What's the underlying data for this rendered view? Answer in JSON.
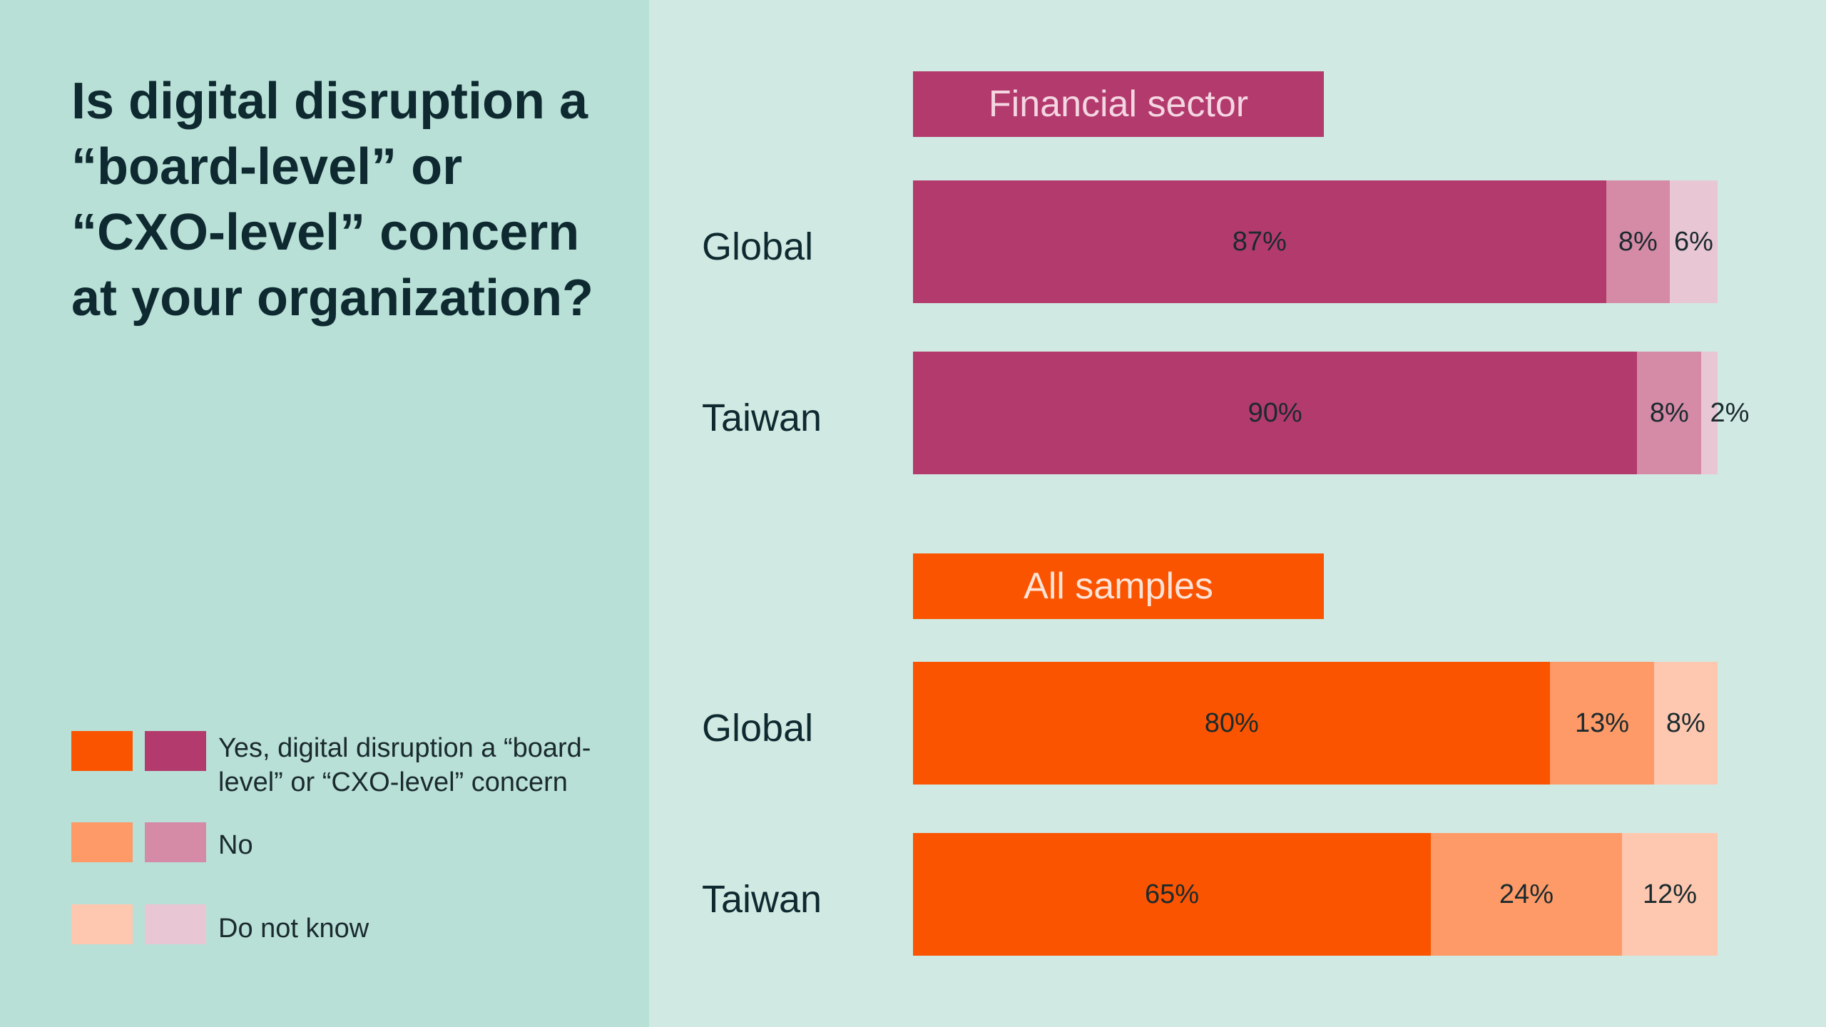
{
  "title": "Is digital disruption a “board-level” or “CXO-level” concern at your organization?",
  "legend": [
    {
      "label": "Yes, digital disruption a “board-level” or “CXO-level” concern",
      "colors": [
        "#fa5400",
        "#b33a6c"
      ]
    },
    {
      "label": "No",
      "colors": [
        "#fd9a68",
        "#d58aa6"
      ]
    },
    {
      "label": "Do not know",
      "colors": [
        "#fec8b0",
        "#e9c6d4"
      ]
    }
  ],
  "chart_data": {
    "type": "bar",
    "orientation": "horizontal",
    "stacked": true,
    "categories": [
      "Yes, digital disruption a “board-level” or “CXO-level” concern",
      "No",
      "Do not know"
    ],
    "groups": [
      {
        "name": "Financial sector",
        "colors": [
          "#b33a6c",
          "#d58aa6",
          "#e9c6d4"
        ],
        "rows": [
          {
            "label": "Global",
            "values": [
              87,
              8,
              6
            ],
            "labels": [
              "87%",
              "8%",
              "6%"
            ]
          },
          {
            "label": "Taiwan",
            "values": [
              90,
              8,
              2
            ],
            "labels": [
              "90%",
              "8%",
              "2%"
            ]
          }
        ]
      },
      {
        "name": "All samples",
        "colors": [
          "#fa5400",
          "#fd9a68",
          "#fec8b0"
        ],
        "rows": [
          {
            "label": "Global",
            "values": [
              80,
              13,
              8
            ],
            "labels": [
              "80%",
              "13%",
              "8%"
            ]
          },
          {
            "label": "Taiwan",
            "values": [
              65,
              24,
              12
            ],
            "labels": [
              "65%",
              "24%",
              "12%"
            ]
          }
        ]
      }
    ]
  }
}
